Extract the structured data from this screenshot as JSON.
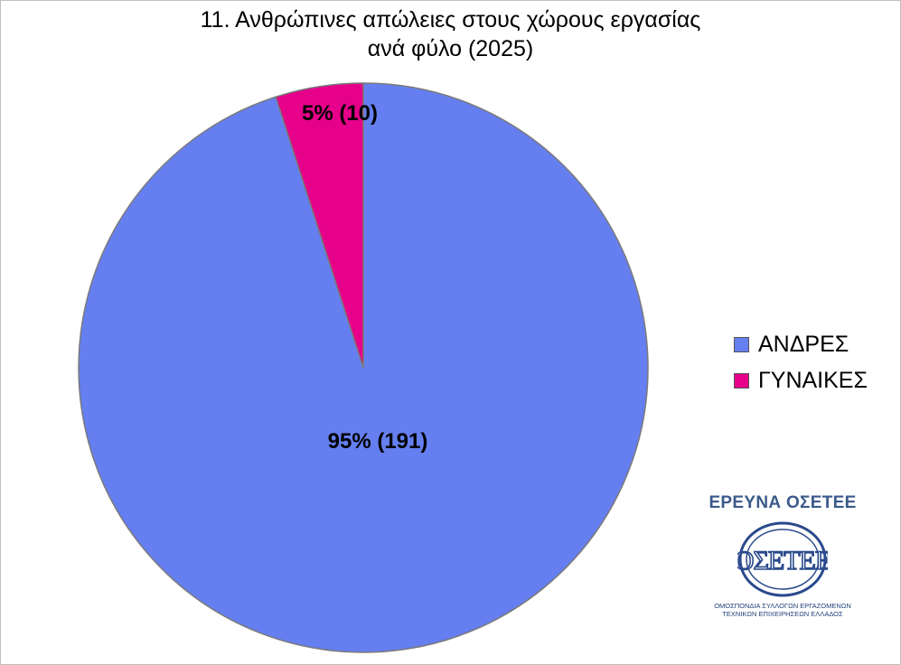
{
  "chart_data": {
    "type": "pie",
    "title_lines": [
      "11. Ανθρώπινες απώλειες στους χώρους εργασίας",
      "ανά φύλο (2025)"
    ],
    "slices": [
      {
        "name": "ΑΝΔΡΕΣ",
        "value": 191,
        "percent": 95,
        "label": "95% (191)",
        "color": "#657ff0"
      },
      {
        "name": "ΓΥΝΑΙΚΕΣ",
        "value": 10,
        "percent": 5,
        "label": "5% (10)",
        "color": "#e6008a"
      }
    ],
    "legend_position": "right",
    "start_angle": "12 o'clock, counter-clockwise for second slice",
    "slice_border_color": "#7a7a7a"
  },
  "branding": {
    "heading": "ΕΡΕΥΝΑ ΟΣΕΤΕΕ",
    "logo_text": "ΟΣΕΤΕΕ",
    "caption_line1": "ΟΜΟΣΠΟΝΔΙΑ ΣΥΛΛΟΓΩΝ ΕΡΓΑΖΟΜΕΝΩΝ",
    "caption_line2": "ΤΕΧΝΙΚΩΝ ΕΠΙΧΕΙΡΗΣΕΩΝ ΕΛΛΑΔΟΣ",
    "color": "#3b5a8a"
  }
}
